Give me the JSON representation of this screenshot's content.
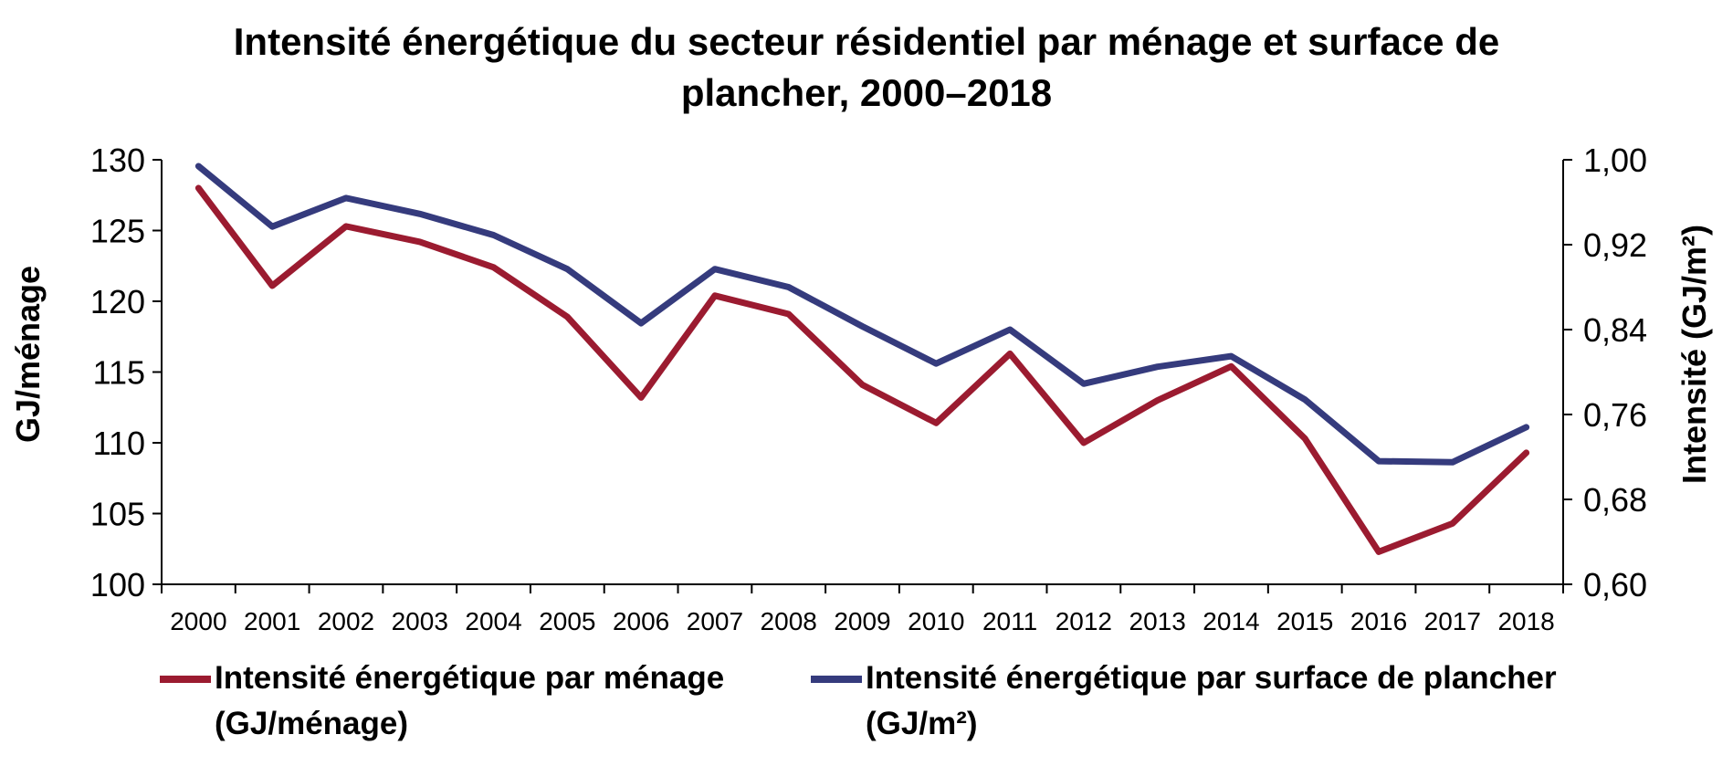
{
  "chart_data": {
    "type": "line",
    "title_lines": [
      "Intensité énergétique du secteur résidentiel par ménage et surface de",
      "plancher, 2000–2018"
    ],
    "ylabel_left": "GJ/ménage",
    "ylabel_right": "Intensité (GJ/m²)",
    "ylim_left": [
      100,
      130
    ],
    "yticks_left": [
      "100",
      "105",
      "110",
      "115",
      "120",
      "125",
      "130"
    ],
    "ylim_right": [
      0.6,
      1.0
    ],
    "yticks_right": [
      "0,60",
      "0,68",
      "0,76",
      "0,84",
      "0,92",
      "1,00"
    ],
    "grid": false,
    "legend_position": "bottom",
    "categories": [
      "2000",
      "2001",
      "2002",
      "2003",
      "2004",
      "2005",
      "2006",
      "2007",
      "2008",
      "2009",
      "2010",
      "2011",
      "2012",
      "2013",
      "2014",
      "2015",
      "2016",
      "2017",
      "2018"
    ],
    "series": [
      {
        "name_lines": [
          "Intensité énergétique par ménage",
          "(GJ/ménage)"
        ],
        "axis": "left",
        "color": "#9b1b30",
        "values": [
          128.0,
          121.1,
          125.3,
          124.2,
          122.4,
          118.9,
          113.2,
          120.4,
          119.1,
          114.1,
          111.4,
          116.3,
          110.0,
          113.0,
          115.4,
          110.3,
          102.3,
          104.3,
          109.3
        ]
      },
      {
        "name_lines": [
          "Intensité énergétique par surface de plancher",
          "(GJ/m²)"
        ],
        "axis": "right",
        "color": "#353b7d",
        "values": [
          0.994,
          0.937,
          0.964,
          0.949,
          0.929,
          0.897,
          0.846,
          0.897,
          0.88,
          0.843,
          0.808,
          0.84,
          0.789,
          0.805,
          0.815,
          0.774,
          0.716,
          0.715,
          0.748
        ]
      }
    ]
  }
}
